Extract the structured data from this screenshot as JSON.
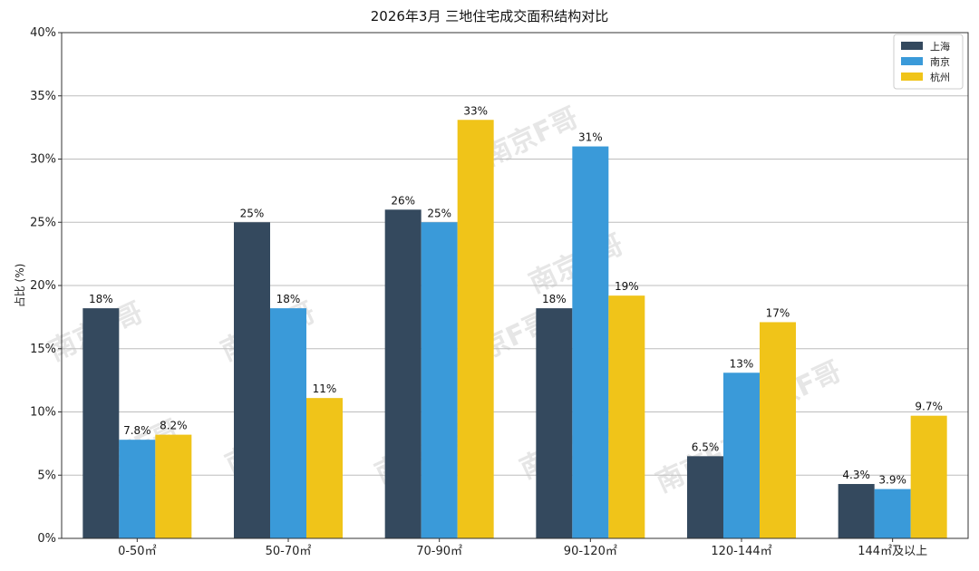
{
  "chart_data": {
    "type": "bar",
    "title": "2026年3月 三地住宅成交面积结构对比",
    "ylabel": "占比 (%)",
    "xlabel": "",
    "ylim": [
      0,
      40
    ],
    "yticks": [
      0,
      5,
      10,
      15,
      20,
      25,
      30,
      35,
      40
    ],
    "ytick_labels": [
      "0%",
      "5%",
      "10%",
      "15%",
      "20%",
      "25%",
      "30%",
      "35%",
      "40%"
    ],
    "categories": [
      "0-50㎡",
      "50-70㎡",
      "70-90㎡",
      "90-120㎡",
      "120-144㎡",
      "144㎡及以上"
    ],
    "series": [
      {
        "name": "上海",
        "color": "#34495e",
        "values": [
          18.2,
          25,
          26,
          18.2,
          6.5,
          4.3
        ],
        "labels": [
          "18%",
          "25%",
          "26%",
          "18%",
          "6.5%",
          "4.3%"
        ]
      },
      {
        "name": "南京",
        "color": "#3a9ad9",
        "values": [
          7.8,
          18.2,
          25,
          31,
          13.1,
          3.9
        ],
        "labels": [
          "7.8%",
          "18%",
          "25%",
          "31%",
          "13%",
          "3.9%"
        ]
      },
      {
        "name": "杭州",
        "color": "#f0c419",
        "values": [
          8.2,
          11.1,
          33.1,
          19.2,
          17.1,
          9.7
        ],
        "labels": [
          "8.2%",
          "11%",
          "33%",
          "19%",
          "17%",
          "9.7%"
        ]
      }
    ],
    "grid": true,
    "legend_position": "top-right"
  },
  "watermark": {
    "text": "南京F哥"
  }
}
